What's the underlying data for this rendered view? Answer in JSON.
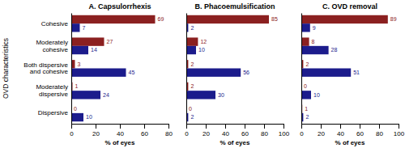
{
  "chart_data": [
    {
      "type": "bar",
      "orientation": "horizontal",
      "title": "A. Capsulorrhexis",
      "categories": [
        "Cohesive",
        "Moderately\ncohesive",
        "Both dispersive\nand cohesive",
        "Moderately\ndispersive",
        "Dispersive"
      ],
      "series": [
        {
          "color": "#8B2020",
          "values": [
            69,
            27,
            3,
            1,
            0
          ]
        },
        {
          "color": "#1C1C8C",
          "values": [
            7,
            14,
            45,
            24,
            10
          ]
        }
      ],
      "xlim": [
        0,
        80
      ],
      "xticks": [
        0,
        20,
        40,
        60,
        80
      ],
      "xlabel": "% of eyes",
      "ylabel": "OVD characteristics",
      "data_labels": true,
      "grid": false
    },
    {
      "type": "bar",
      "orientation": "horizontal",
      "title": "B. Phacoemulsification",
      "categories": [
        null,
        null,
        null,
        null,
        null
      ],
      "series": [
        {
          "color": "#8B2020",
          "values": [
            85,
            12,
            2,
            2,
            0
          ]
        },
        {
          "color": "#1C1C8C",
          "values": [
            2,
            10,
            56,
            30,
            2
          ]
        }
      ],
      "xlim": [
        0,
        100
      ],
      "xticks": [
        0,
        20,
        40,
        60,
        80,
        100
      ],
      "xlabel": "% of eyes",
      "data_labels": true,
      "grid": false,
      "tick_labels": "x"
    },
    {
      "type": "bar",
      "orientation": "horizontal",
      "title": "C. OVD removal",
      "categories": [
        null,
        null,
        null,
        null,
        null
      ],
      "series": [
        {
          "color": "#8B2020",
          "values": [
            89,
            8,
            2,
            0,
            1
          ]
        },
        {
          "color": "#1C1C8C",
          "values": [
            9,
            28,
            51,
            10,
            2
          ]
        }
      ],
      "xlim": [
        0,
        100
      ],
      "xticks": [
        0,
        20,
        40,
        60,
        80,
        100
      ],
      "xlabel": "% of eyes",
      "data_labels": true,
      "grid": false,
      "tick_labels": "x"
    }
  ]
}
